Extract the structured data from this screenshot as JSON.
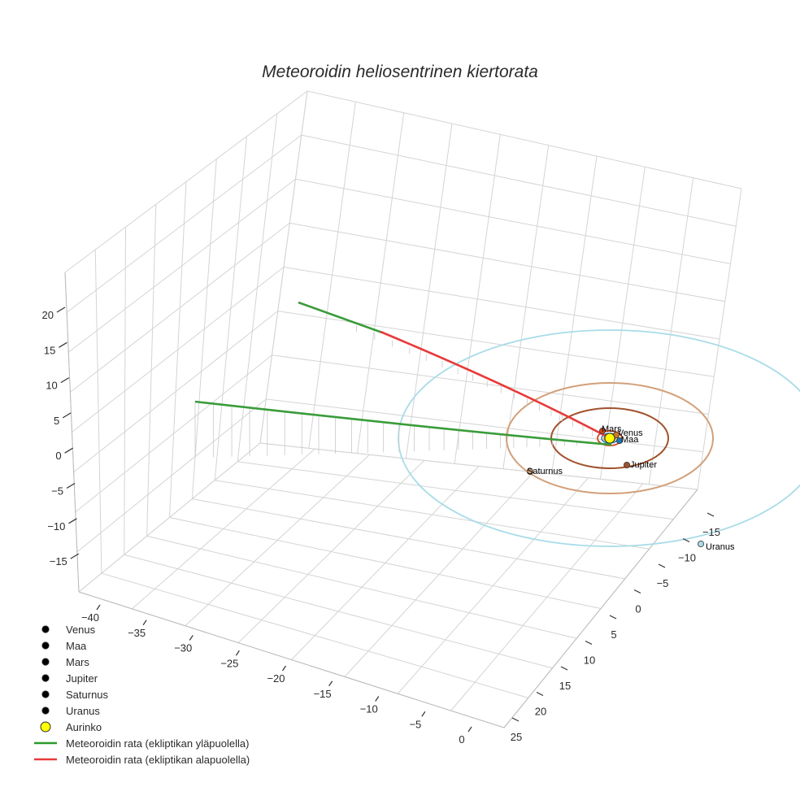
{
  "chart_data": {
    "type": "scatter3d",
    "title": "Meteoroidin heliosentrinen kiertorata",
    "axes": {
      "x_ticks": [
        "−40",
        "−35",
        "−30",
        "−25",
        "−20",
        "−15",
        "−10",
        "−5",
        "0"
      ],
      "y_ticks": [
        "−15",
        "−10",
        "−5",
        "0",
        "5",
        "10",
        "15",
        "20",
        "25"
      ],
      "z_ticks": [
        "20",
        "15",
        "10",
        "5",
        "0",
        "−5",
        "−10",
        "−15"
      ],
      "grid": true
    },
    "colors": {
      "venus": "#d07a1f",
      "earth": "#1f77b4",
      "mars": "#d2451e",
      "jupiter": "#a0522d",
      "saturn": "#d2a07a",
      "uranus": "#a8dce8",
      "sun": "#ffff00",
      "above": "#2ca02c",
      "below": "#e83a3a"
    },
    "planets": [
      {
        "key": "venus",
        "name": "Venus",
        "legend": "Venus"
      },
      {
        "key": "earth",
        "name": "Maa",
        "legend": "Maa"
      },
      {
        "key": "mars",
        "name": "Mars",
        "legend": "Mars"
      },
      {
        "key": "jupiter",
        "name": "Jupiter",
        "legend": "Jupiter"
      },
      {
        "key": "saturn",
        "name": "Saturnus",
        "legend": "Saturnus"
      },
      {
        "key": "uranus",
        "name": "Uranus",
        "legend": "Uranus"
      }
    ],
    "sun": {
      "legend": "Aurinko"
    },
    "trajectory_legend": {
      "above": "Meteoroidin rata (ekliptikan yläpuolella)",
      "below": "Meteoroidin rata (ekliptikan alapuolella)"
    }
  }
}
